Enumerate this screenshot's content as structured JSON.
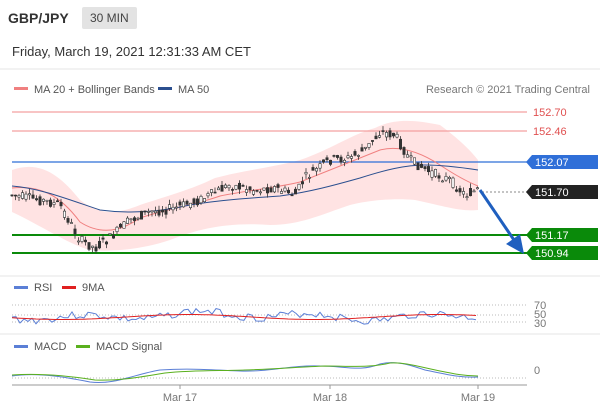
{
  "header": {
    "pair": "GBP/JPY",
    "timeframe": "30 MIN"
  },
  "datetime": "Friday, March 19, 2021 12:31:33 AM CET",
  "legend": {
    "ma20_label": "MA 20 + Bollinger Bands",
    "ma50_label": "MA 50",
    "copyright": "Research © 2021 Trading Central",
    "ma20_color": "#f08080",
    "ma50_color": "#2b4f8f"
  },
  "levels": [
    {
      "value": "152.70",
      "kind": "resistance-light"
    },
    {
      "value": "152.46",
      "kind": "resistance-light"
    },
    {
      "value": "152.07",
      "kind": "pivot"
    },
    {
      "value": "151.70",
      "kind": "last"
    },
    {
      "value": "151.17",
      "kind": "support"
    },
    {
      "value": "150.94",
      "kind": "support"
    }
  ],
  "rsi": {
    "label": "RSI",
    "ma_label": "9MA",
    "ticks": [
      "70",
      "50",
      "30"
    ]
  },
  "macd": {
    "label": "MACD",
    "signal_label": "MACD Signal",
    "tick": "0"
  },
  "x_axis": [
    "Mar 17",
    "Mar 18",
    "Mar 19"
  ],
  "colors": {
    "support": "#0a8a0a",
    "pivot": "#2f6fd8",
    "light_red": "#f4a0a0",
    "arrow": "#1f5fbf",
    "band": "#ffd6d6",
    "rsi": "#5b7fd6",
    "macd_signal": "#5ab01e",
    "nine_ma": "#e02020"
  }
}
